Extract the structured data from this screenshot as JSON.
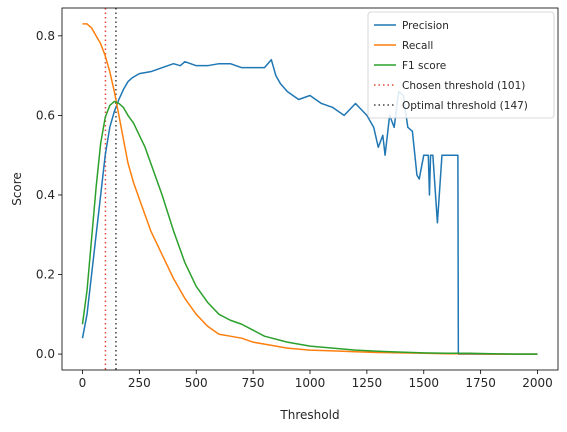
{
  "chart_data": {
    "type": "line",
    "title": "",
    "xlabel": "Threshold",
    "ylabel": "Score",
    "xlim": [
      -90,
      2090
    ],
    "ylim": [
      -0.04,
      0.87
    ],
    "xticks": [
      0,
      250,
      500,
      750,
      1000,
      1250,
      1500,
      1750,
      2000
    ],
    "yticks": [
      0.0,
      0.2,
      0.4,
      0.6,
      0.8
    ],
    "xtick_labels": [
      "0",
      "250",
      "500",
      "750",
      "1000",
      "1250",
      "1500",
      "1750",
      "2000"
    ],
    "ytick_labels": [
      "0.0",
      "0.2",
      "0.4",
      "0.6",
      "0.8"
    ],
    "grid": false,
    "legend_position": "top-right",
    "series": [
      {
        "name": "Precision",
        "color": "#1f77b4",
        "style": "solid",
        "x": [
          0,
          20,
          40,
          60,
          80,
          100,
          120,
          140,
          160,
          180,
          200,
          220,
          250,
          300,
          350,
          400,
          430,
          450,
          500,
          550,
          600,
          650,
          700,
          750,
          800,
          830,
          850,
          870,
          900,
          950,
          1000,
          1050,
          1100,
          1150,
          1200,
          1250,
          1280,
          1300,
          1320,
          1330,
          1350,
          1370,
          1390,
          1410,
          1430,
          1450,
          1470,
          1480,
          1500,
          1510,
          1520,
          1525,
          1530,
          1540,
          1560,
          1580,
          1600,
          1620,
          1640,
          1650,
          1652,
          1700,
          1800,
          1900,
          2000
        ],
        "y": [
          0.04,
          0.1,
          0.2,
          0.3,
          0.4,
          0.5,
          0.57,
          0.61,
          0.64,
          0.665,
          0.685,
          0.695,
          0.705,
          0.71,
          0.72,
          0.73,
          0.725,
          0.735,
          0.725,
          0.725,
          0.73,
          0.73,
          0.72,
          0.72,
          0.72,
          0.74,
          0.7,
          0.68,
          0.66,
          0.64,
          0.65,
          0.63,
          0.62,
          0.6,
          0.63,
          0.6,
          0.57,
          0.52,
          0.55,
          0.5,
          0.6,
          0.57,
          0.66,
          0.65,
          0.57,
          0.56,
          0.45,
          0.44,
          0.5,
          0.5,
          0.5,
          0.4,
          0.5,
          0.5,
          0.33,
          0.5,
          0.5,
          0.5,
          0.5,
          0.5,
          0.0,
          0.0,
          0.0,
          0.0,
          0.0
        ]
      },
      {
        "name": "Recall",
        "color": "#ff7f0e",
        "style": "solid",
        "x": [
          0,
          20,
          40,
          60,
          80,
          100,
          120,
          140,
          160,
          180,
          200,
          225,
          250,
          275,
          300,
          350,
          400,
          450,
          500,
          550,
          600,
          650,
          700,
          750,
          800,
          900,
          1000,
          1100,
          1200,
          1300,
          1400,
          1500,
          1600,
          1700,
          1800,
          1900,
          2000
        ],
        "y": [
          0.83,
          0.83,
          0.82,
          0.8,
          0.78,
          0.75,
          0.71,
          0.66,
          0.6,
          0.54,
          0.48,
          0.43,
          0.39,
          0.35,
          0.31,
          0.25,
          0.19,
          0.14,
          0.1,
          0.07,
          0.05,
          0.045,
          0.04,
          0.03,
          0.025,
          0.015,
          0.01,
          0.008,
          0.006,
          0.004,
          0.003,
          0.002,
          0.001,
          0.001,
          0.0,
          0.0,
          0.0
        ]
      },
      {
        "name": "F1 score",
        "color": "#2ca02c",
        "style": "solid",
        "x": [
          0,
          20,
          40,
          60,
          80,
          100,
          120,
          140,
          160,
          180,
          200,
          225,
          250,
          275,
          300,
          350,
          400,
          450,
          500,
          550,
          600,
          650,
          700,
          750,
          800,
          900,
          1000,
          1100,
          1200,
          1300,
          1400,
          1500,
          1600,
          1700,
          1800,
          1900,
          2000
        ],
        "y": [
          0.075,
          0.16,
          0.29,
          0.42,
          0.53,
          0.595,
          0.625,
          0.635,
          0.63,
          0.62,
          0.6,
          0.58,
          0.55,
          0.52,
          0.48,
          0.4,
          0.31,
          0.23,
          0.17,
          0.13,
          0.1,
          0.085,
          0.075,
          0.06,
          0.045,
          0.03,
          0.02,
          0.015,
          0.01,
          0.007,
          0.005,
          0.003,
          0.002,
          0.002,
          0.001,
          0.0,
          0.0
        ]
      }
    ],
    "vlines": [
      {
        "name": "Chosen threshold (101)",
        "x": 101,
        "color": "#e8463a",
        "style": "dotted"
      },
      {
        "name": "Optimal threshold (147)",
        "x": 147,
        "color": "#404040",
        "style": "dotted"
      }
    ]
  }
}
